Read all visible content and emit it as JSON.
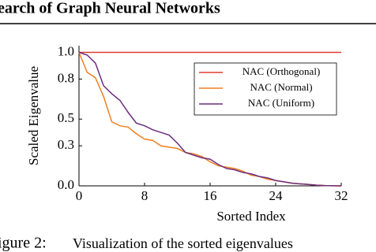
{
  "header": "earch of Graph Neural Networks",
  "caption": {
    "label": "igure 2:",
    "text": "Visualization of the sorted eigenvalues"
  },
  "chart_data": {
    "type": "line",
    "xlabel": "Sorted Index",
    "ylabel": "Scaled Eigenvalue",
    "x": [
      0,
      1,
      2,
      3,
      4,
      5,
      6,
      7,
      8,
      9,
      10,
      11,
      12,
      13,
      14,
      15,
      16,
      17,
      18,
      19,
      20,
      21,
      22,
      23,
      24,
      25,
      26,
      27,
      28,
      29,
      30,
      31,
      32
    ],
    "series": [
      {
        "name": "NAC (Orthogonal)",
        "color": "#e03c31",
        "values": [
          1,
          1,
          1,
          1,
          1,
          1,
          1,
          1,
          1,
          1,
          1,
          1,
          1,
          1,
          1,
          1,
          1,
          1,
          1,
          1,
          1,
          1,
          1,
          1,
          1,
          1,
          1,
          1,
          1,
          1,
          1,
          1,
          1
        ]
      },
      {
        "name": "NAC (Normal)",
        "color": "#f07f22",
        "values": [
          1.0,
          0.85,
          0.81,
          0.67,
          0.48,
          0.45,
          0.44,
          0.39,
          0.35,
          0.34,
          0.3,
          0.29,
          0.28,
          0.25,
          0.24,
          0.22,
          0.18,
          0.15,
          0.14,
          0.13,
          0.11,
          0.08,
          0.07,
          0.05,
          0.04,
          0.03,
          0.02,
          0.015,
          0.01,
          0.005,
          0.002,
          0.001,
          0
        ]
      },
      {
        "name": "NAC (Uniform)",
        "color": "#6b2d7b",
        "values": [
          1.0,
          0.98,
          0.92,
          0.75,
          0.69,
          0.64,
          0.55,
          0.47,
          0.45,
          0.42,
          0.4,
          0.38,
          0.32,
          0.25,
          0.23,
          0.21,
          0.2,
          0.16,
          0.13,
          0.12,
          0.1,
          0.09,
          0.07,
          0.06,
          0.04,
          0.03,
          0.02,
          0.015,
          0.01,
          0.005,
          0.002,
          0.001,
          0
        ]
      }
    ],
    "xlim": [
      0,
      32
    ],
    "ylim": [
      0,
      1.05
    ],
    "xticks": [
      0,
      8,
      16,
      24,
      32
    ],
    "yticks": [
      {
        "value": 0,
        "label": "0.0"
      },
      0.3,
      0.5,
      0.8,
      {
        "value": 1,
        "label": "1.0"
      }
    ],
    "legend": "upper right"
  }
}
